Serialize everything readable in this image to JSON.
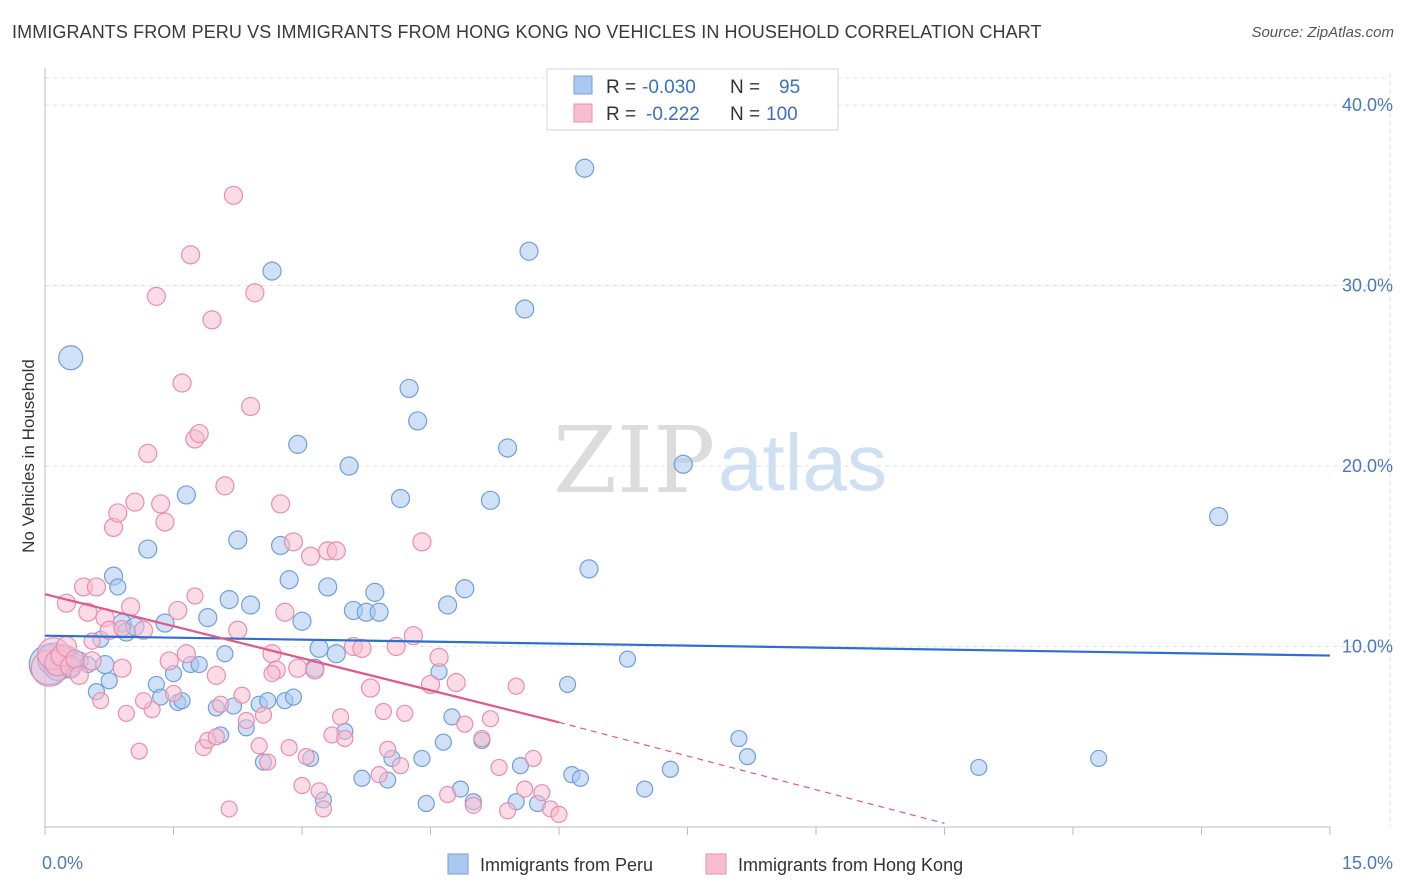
{
  "title": "IMMIGRANTS FROM PERU VS IMMIGRANTS FROM HONG KONG NO VEHICLES IN HOUSEHOLD CORRELATION CHART",
  "source": "Source: ZipAtlas.com",
  "watermark": {
    "zip": "ZIP",
    "atlas": "atlas"
  },
  "colors": {
    "peru_fill": "#aac8f0",
    "peru_stroke": "#6f9fdc",
    "peru_line": "#2c6fce",
    "hk_fill": "#f7bdd0",
    "hk_stroke": "#e98eae",
    "hk_line": "#e0578a",
    "tick_text": "#4a78c2",
    "grid": "#e2e2e2"
  },
  "legend": {
    "rows": [
      {
        "r_label": "R =",
        "r_value": "-0.030",
        "n_label": "N =",
        "n_value": "95"
      },
      {
        "r_label": "R =",
        "r_value": "-0.222",
        "n_label": "N =",
        "n_value": "100"
      }
    ]
  },
  "chart_data": {
    "type": "scatter",
    "ylabel": "No Vehicles in Household",
    "xlabel": "",
    "xlim": [
      0,
      15
    ],
    "ylim": [
      0,
      41.5
    ],
    "x_tick_labels": [
      "0.0%",
      "15.0%"
    ],
    "y_ticks": [
      10,
      20,
      30,
      40
    ],
    "y_tick_labels": [
      "10.0%",
      "20.0%",
      "30.0%",
      "40.0%"
    ],
    "grid": true,
    "legend_placement": "top-center",
    "series": [
      {
        "name": "Immigrants from Peru",
        "r": -0.03,
        "n": 95,
        "trend": {
          "x": [
            0,
            15
          ],
          "y": [
            10.6,
            9.5
          ],
          "dashed_from": null
        },
        "points": [
          [
            0.05,
            9.0,
            20
          ],
          [
            0.1,
            9.3,
            16
          ],
          [
            0.15,
            8.9,
            14
          ],
          [
            0.2,
            9.4,
            12
          ],
          [
            0.25,
            9.5,
            10
          ],
          [
            0.3,
            8.8,
            10
          ],
          [
            0.35,
            9.1,
            9
          ],
          [
            0.4,
            9.2,
            9
          ],
          [
            0.3,
            26.0,
            12
          ],
          [
            0.7,
            9.0,
            9
          ],
          [
            0.8,
            13.9,
            9
          ],
          [
            0.85,
            13.3,
            8
          ],
          [
            0.9,
            11.3,
            9
          ],
          [
            0.95,
            10.8,
            9
          ],
          [
            0.65,
            10.4,
            8
          ],
          [
            0.6,
            7.5,
            8
          ],
          [
            0.5,
            9.0,
            8
          ],
          [
            0.75,
            8.1,
            8
          ],
          [
            1.05,
            11.1,
            9
          ],
          [
            1.2,
            15.4,
            9
          ],
          [
            1.3,
            7.9,
            8
          ],
          [
            1.35,
            7.2,
            8
          ],
          [
            1.4,
            11.3,
            9
          ],
          [
            1.5,
            8.5,
            8
          ],
          [
            1.55,
            6.9,
            8
          ],
          [
            1.6,
            7.0,
            8
          ],
          [
            1.65,
            18.4,
            9
          ],
          [
            1.7,
            9.0,
            8
          ],
          [
            1.8,
            9.0,
            8
          ],
          [
            1.9,
            11.6,
            9
          ],
          [
            2.0,
            6.6,
            8
          ],
          [
            2.05,
            5.1,
            8
          ],
          [
            2.1,
            9.6,
            8
          ],
          [
            2.15,
            12.6,
            9
          ],
          [
            2.2,
            6.7,
            8
          ],
          [
            2.25,
            15.9,
            9
          ],
          [
            2.35,
            5.5,
            8
          ],
          [
            2.4,
            12.3,
            9
          ],
          [
            2.5,
            6.8,
            8
          ],
          [
            2.55,
            3.6,
            8
          ],
          [
            2.6,
            7.0,
            8
          ],
          [
            2.65,
            30.8,
            9
          ],
          [
            2.75,
            15.6,
            9
          ],
          [
            2.8,
            7.0,
            8
          ],
          [
            2.85,
            13.7,
            9
          ],
          [
            2.9,
            7.2,
            8
          ],
          [
            2.95,
            21.2,
            9
          ],
          [
            3.0,
            11.4,
            9
          ],
          [
            3.1,
            3.8,
            8
          ],
          [
            3.15,
            8.8,
            9
          ],
          [
            3.2,
            9.9,
            9
          ],
          [
            3.25,
            1.5,
            8
          ],
          [
            3.3,
            13.3,
            9
          ],
          [
            3.4,
            9.6,
            9
          ],
          [
            3.5,
            5.3,
            8
          ],
          [
            3.55,
            20.0,
            9
          ],
          [
            3.6,
            12.0,
            9
          ],
          [
            3.7,
            2.7,
            8
          ],
          [
            3.75,
            11.9,
            9
          ],
          [
            3.85,
            13.0,
            9
          ],
          [
            3.9,
            11.9,
            9
          ],
          [
            4.0,
            2.6,
            8
          ],
          [
            4.05,
            3.8,
            8
          ],
          [
            4.15,
            18.2,
            9
          ],
          [
            4.25,
            24.3,
            9
          ],
          [
            4.35,
            22.5,
            9
          ],
          [
            4.4,
            3.8,
            8
          ],
          [
            4.45,
            1.3,
            8
          ],
          [
            4.6,
            8.6,
            8
          ],
          [
            4.65,
            4.7,
            8
          ],
          [
            4.7,
            12.3,
            9
          ],
          [
            4.75,
            6.1,
            8
          ],
          [
            4.85,
            2.1,
            8
          ],
          [
            4.9,
            13.2,
            9
          ],
          [
            5.0,
            1.4,
            8
          ],
          [
            5.1,
            4.8,
            8
          ],
          [
            5.2,
            18.1,
            9
          ],
          [
            5.4,
            21.0,
            9
          ],
          [
            5.5,
            1.4,
            8
          ],
          [
            5.55,
            3.4,
            8
          ],
          [
            5.6,
            28.7,
            9
          ],
          [
            5.65,
            31.9,
            9
          ],
          [
            5.75,
            1.3,
            8
          ],
          [
            6.1,
            7.9,
            8
          ],
          [
            6.15,
            2.9,
            8
          ],
          [
            6.25,
            2.7,
            8
          ],
          [
            6.3,
            36.5,
            9
          ],
          [
            6.35,
            14.3,
            9
          ],
          [
            6.8,
            9.3,
            8
          ],
          [
            7.0,
            2.1,
            8
          ],
          [
            7.3,
            3.2,
            8
          ],
          [
            7.45,
            20.1,
            9
          ],
          [
            8.1,
            4.9,
            8
          ],
          [
            8.2,
            3.9,
            8
          ],
          [
            10.9,
            3.3,
            8
          ],
          [
            12.3,
            3.8,
            8
          ],
          [
            13.7,
            17.2,
            9
          ]
        ]
      },
      {
        "name": "Immigrants from Hong Kong",
        "r": -0.222,
        "n": 100,
        "trend": {
          "x": [
            0,
            6.0
          ],
          "y": [
            12.9,
            5.8
          ],
          "dashed_from": 6.0,
          "dashed_to": [
            10.5,
            0.2
          ]
        },
        "points": [
          [
            0.05,
            8.8,
            18
          ],
          [
            0.1,
            9.6,
            16
          ],
          [
            0.15,
            9.1,
            13
          ],
          [
            0.2,
            9.5,
            11
          ],
          [
            0.25,
            10.0,
            10
          ],
          [
            0.3,
            8.9,
            10
          ],
          [
            0.35,
            9.3,
            9
          ],
          [
            0.4,
            8.4,
            9
          ],
          [
            0.25,
            12.4,
            9
          ],
          [
            0.45,
            13.3,
            9
          ],
          [
            0.5,
            11.9,
            9
          ],
          [
            0.55,
            9.2,
            9
          ],
          [
            0.6,
            13.3,
            9
          ],
          [
            0.65,
            7.0,
            8
          ],
          [
            0.7,
            11.6,
            9
          ],
          [
            0.75,
            10.9,
            9
          ],
          [
            0.8,
            16.6,
            9
          ],
          [
            0.85,
            17.4,
            9
          ],
          [
            0.9,
            8.8,
            9
          ],
          [
            0.95,
            6.3,
            8
          ],
          [
            1.0,
            12.2,
            9
          ],
          [
            1.05,
            18.0,
            9
          ],
          [
            1.1,
            4.2,
            8
          ],
          [
            1.15,
            10.9,
            9
          ],
          [
            1.2,
            20.7,
            9
          ],
          [
            1.25,
            6.5,
            8
          ],
          [
            1.3,
            29.4,
            9
          ],
          [
            1.35,
            17.9,
            9
          ],
          [
            1.4,
            16.9,
            9
          ],
          [
            1.45,
            9.2,
            9
          ],
          [
            1.5,
            7.4,
            8
          ],
          [
            1.55,
            12.0,
            9
          ],
          [
            1.6,
            24.6,
            9
          ],
          [
            1.65,
            9.6,
            9
          ],
          [
            1.7,
            31.7,
            9
          ],
          [
            1.75,
            21.5,
            9
          ],
          [
            1.8,
            21.8,
            9
          ],
          [
            1.85,
            4.4,
            8
          ],
          [
            1.9,
            4.8,
            8
          ],
          [
            1.95,
            28.1,
            9
          ],
          [
            2.0,
            8.4,
            9
          ],
          [
            2.05,
            6.8,
            8
          ],
          [
            2.1,
            18.9,
            9
          ],
          [
            2.15,
            1.0,
            8
          ],
          [
            2.2,
            35.0,
            9
          ],
          [
            2.25,
            10.9,
            9
          ],
          [
            2.3,
            7.3,
            8
          ],
          [
            2.35,
            5.9,
            8
          ],
          [
            2.4,
            23.3,
            9
          ],
          [
            2.45,
            29.6,
            9
          ],
          [
            2.5,
            4.5,
            8
          ],
          [
            2.55,
            6.2,
            8
          ],
          [
            2.6,
            3.6,
            8
          ],
          [
            2.65,
            9.6,
            9
          ],
          [
            2.7,
            8.7,
            9
          ],
          [
            2.75,
            17.9,
            9
          ],
          [
            2.8,
            11.9,
            9
          ],
          [
            2.85,
            4.4,
            8
          ],
          [
            2.9,
            15.8,
            9
          ],
          [
            2.95,
            8.8,
            9
          ],
          [
            3.0,
            2.3,
            8
          ],
          [
            3.05,
            3.9,
            8
          ],
          [
            3.1,
            15.0,
            9
          ],
          [
            3.15,
            8.7,
            9
          ],
          [
            3.2,
            2.0,
            8
          ],
          [
            3.25,
            1.0,
            8
          ],
          [
            3.3,
            15.3,
            9
          ],
          [
            3.35,
            5.1,
            8
          ],
          [
            3.4,
            15.3,
            9
          ],
          [
            3.45,
            6.1,
            8
          ],
          [
            3.5,
            4.9,
            8
          ],
          [
            3.6,
            10.0,
            9
          ],
          [
            3.7,
            9.9,
            9
          ],
          [
            3.8,
            7.7,
            9
          ],
          [
            3.9,
            2.9,
            8
          ],
          [
            4.0,
            4.3,
            8
          ],
          [
            4.1,
            10.0,
            9
          ],
          [
            4.2,
            6.3,
            8
          ],
          [
            4.3,
            10.6,
            9
          ],
          [
            4.4,
            15.8,
            9
          ],
          [
            4.5,
            7.9,
            9
          ],
          [
            4.6,
            9.4,
            9
          ],
          [
            4.7,
            1.8,
            8
          ],
          [
            4.8,
            8.0,
            9
          ],
          [
            4.9,
            5.7,
            8
          ],
          [
            5.0,
            1.2,
            8
          ],
          [
            5.1,
            4.9,
            8
          ],
          [
            5.2,
            6.0,
            8
          ],
          [
            5.3,
            3.3,
            8
          ],
          [
            5.4,
            0.9,
            8
          ],
          [
            5.5,
            7.8,
            8
          ],
          [
            5.6,
            2.1,
            8
          ],
          [
            5.7,
            3.8,
            8
          ],
          [
            5.8,
            1.9,
            8
          ],
          [
            5.9,
            1.0,
            8
          ],
          [
            6.0,
            0.7,
            8
          ],
          [
            1.15,
            7.0,
            8
          ],
          [
            2.0,
            5.0,
            8
          ],
          [
            2.65,
            8.5,
            8
          ],
          [
            0.55,
            10.3,
            8
          ],
          [
            1.75,
            12.8,
            8
          ],
          [
            3.95,
            6.4,
            8
          ],
          [
            4.15,
            3.4,
            8
          ],
          [
            0.9,
            11.0,
            8
          ]
        ]
      }
    ]
  }
}
